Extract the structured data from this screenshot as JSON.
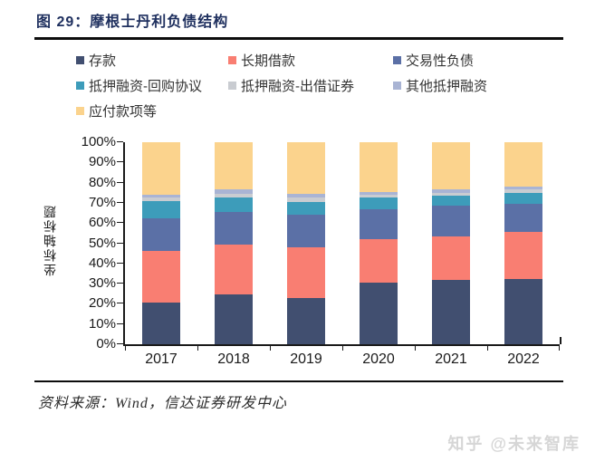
{
  "figure": {
    "title": "图  29：摩根士丹利负债结构"
  },
  "chart_data": {
    "type": "bar",
    "stacked": true,
    "title": "摩根士丹利负债结构",
    "categories": [
      "2017",
      "2018",
      "2019",
      "2020",
      "2021",
      "2022"
    ],
    "series": [
      {
        "name": "存款",
        "color": "#414f70",
        "values": [
          20.5,
          24.5,
          23.0,
          30.5,
          32.0,
          32.5
        ]
      },
      {
        "name": "长期借款",
        "color": "#f97e72",
        "values": [
          25.5,
          25.0,
          25.0,
          21.5,
          21.5,
          23.0
        ]
      },
      {
        "name": "交易性负债",
        "color": "#5b70a6",
        "values": [
          16.5,
          16.0,
          16.0,
          15.0,
          15.0,
          14.0
        ]
      },
      {
        "name": "抵押融资-回购协议",
        "color": "#3d9cba",
        "values": [
          8.5,
          7.0,
          6.5,
          5.5,
          5.0,
          5.5
        ]
      },
      {
        "name": "抵押融资-出借证券",
        "color": "#c9ccd1",
        "values": [
          1.5,
          2.0,
          2.0,
          1.5,
          1.5,
          1.5
        ]
      },
      {
        "name": "其他抵押融资",
        "color": "#a9b4d4",
        "values": [
          1.5,
          2.0,
          2.0,
          1.5,
          1.5,
          1.5
        ]
      },
      {
        "name": "应付款项等",
        "color": "#fbd38d",
        "values": [
          26.0,
          23.5,
          25.5,
          24.5,
          23.5,
          22.0
        ]
      }
    ],
    "xlabel": "",
    "ylabel": "坐标轴标题",
    "ylim": [
      0,
      100
    ],
    "y_ticks": [
      "0%",
      "10%",
      "20%",
      "30%",
      "40%",
      "50%",
      "60%",
      "70%",
      "80%",
      "90%",
      "100%"
    ],
    "grid": false,
    "legend_position": "top"
  },
  "footer": {
    "source": "资料来源：Wind，信达证券研发中心",
    "watermark": "知乎 @未来智库"
  }
}
